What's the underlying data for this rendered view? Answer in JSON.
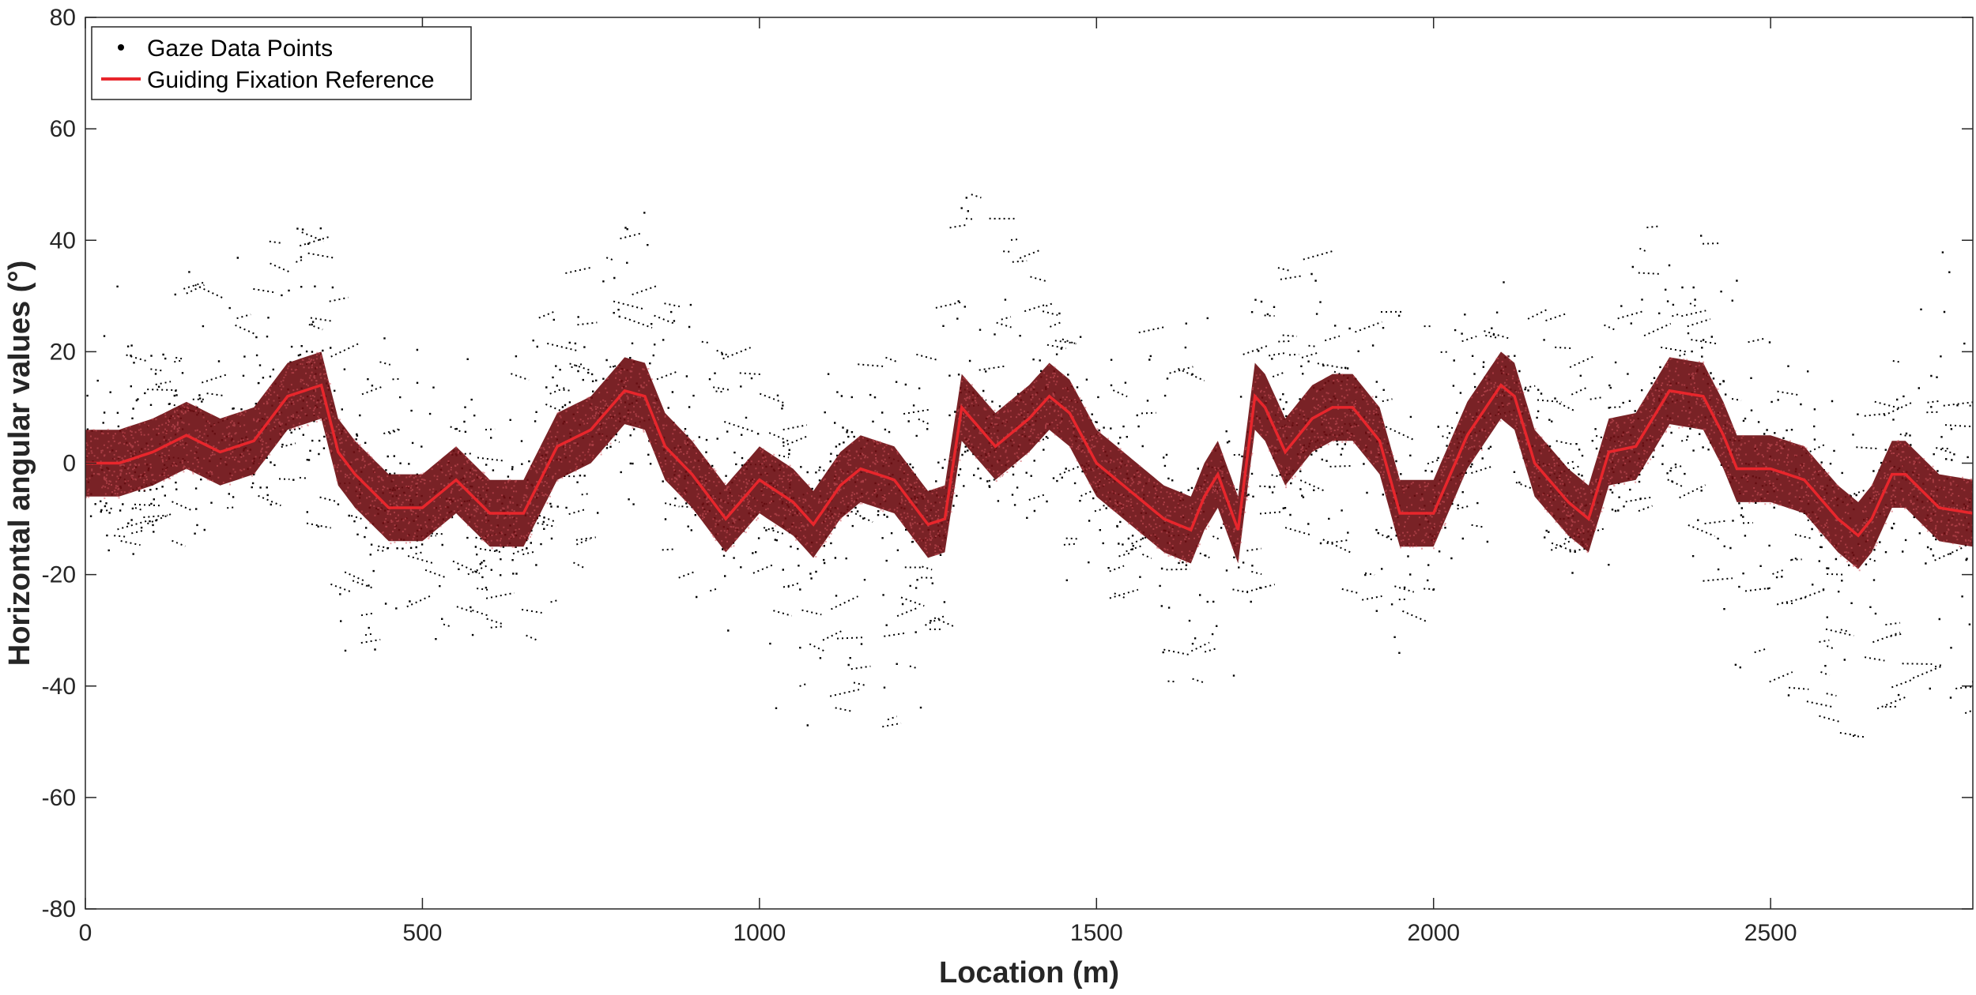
{
  "chart_data": {
    "type": "scatter",
    "title": "",
    "xlabel": "Location (m)",
    "ylabel": "Horizontal angular values (°)",
    "xlim": [
      0,
      2800
    ],
    "ylim": [
      -80,
      80
    ],
    "x_ticks": [
      0,
      500,
      1000,
      1500,
      2000,
      2500
    ],
    "x_tick_labels": [
      "0",
      "500",
      "1000",
      "1500",
      "2000",
      "2500"
    ],
    "y_ticks": [
      -80,
      -60,
      -40,
      -20,
      0,
      20,
      40,
      60,
      80
    ],
    "y_tick_labels": [
      "-80",
      "-60",
      "-40",
      "-20",
      "0",
      "20",
      "40",
      "60",
      "80"
    ],
    "grid": false,
    "legend_position": "top-left",
    "series": [
      {
        "name": "Gaze Data Points",
        "kind": "scatter",
        "color": "#000000",
        "summary": {
          "x_range": [
            0,
            2800
          ],
          "y_range": [
            -65,
            61
          ],
          "spread_envelope_x": [
            0,
            150,
            300,
            340,
            380,
            500,
            650,
            780,
            850,
            1000,
            1080,
            1250,
            1290,
            1420,
            1640,
            1700,
            1750,
            1950,
            2100,
            2220,
            2350,
            2430,
            2620,
            2680,
            2800
          ],
          "spread_envelope_upper": [
            25,
            35,
            45,
            42,
            20,
            20,
            25,
            50,
            35,
            15,
            15,
            25,
            52,
            35,
            20,
            30,
            45,
            25,
            35,
            20,
            55,
            30,
            20,
            25,
            40
          ],
          "spread_envelope_lower": [
            -20,
            -15,
            -10,
            -12,
            -38,
            -30,
            -40,
            -5,
            -20,
            -35,
            -48,
            -48,
            -5,
            -10,
            -45,
            -48,
            -10,
            -35,
            -5,
            -25,
            -5,
            -35,
            -50,
            -45,
            -55
          ]
        }
      },
      {
        "name": "Guiding Fixation Reference",
        "kind": "line",
        "color": "#e8262c",
        "band_color": "#6e0f14",
        "band_halfwidth": 6,
        "x": [
          0,
          50,
          100,
          150,
          200,
          250,
          300,
          350,
          375,
          400,
          450,
          500,
          550,
          600,
          650,
          700,
          750,
          800,
          830,
          860,
          900,
          950,
          1000,
          1050,
          1080,
          1120,
          1150,
          1200,
          1250,
          1275,
          1300,
          1350,
          1400,
          1430,
          1460,
          1500,
          1550,
          1600,
          1640,
          1660,
          1680,
          1710,
          1735,
          1750,
          1780,
          1820,
          1850,
          1880,
          1920,
          1950,
          2000,
          2050,
          2100,
          2120,
          2150,
          2200,
          2230,
          2260,
          2300,
          2350,
          2400,
          2430,
          2450,
          2500,
          2550,
          2600,
          2630,
          2650,
          2680,
          2700,
          2750,
          2800
        ],
        "y": [
          0,
          0,
          2,
          5,
          2,
          4,
          12,
          14,
          2,
          -2,
          -8,
          -8,
          -3,
          -9,
          -9,
          3,
          6,
          13,
          12,
          3,
          -2,
          -10,
          -3,
          -7,
          -11,
          -4,
          -1,
          -3,
          -11,
          -10,
          10,
          3,
          8,
          12,
          9,
          0,
          -5,
          -10,
          -12,
          -6,
          -2,
          -12,
          12,
          10,
          2,
          8,
          10,
          10,
          4,
          -9,
          -9,
          5,
          14,
          12,
          0,
          -7,
          -10,
          2,
          3,
          13,
          12,
          5,
          -1,
          -1,
          -3,
          -10,
          -13,
          -10,
          -2,
          -2,
          -8,
          -9
        ]
      }
    ]
  }
}
